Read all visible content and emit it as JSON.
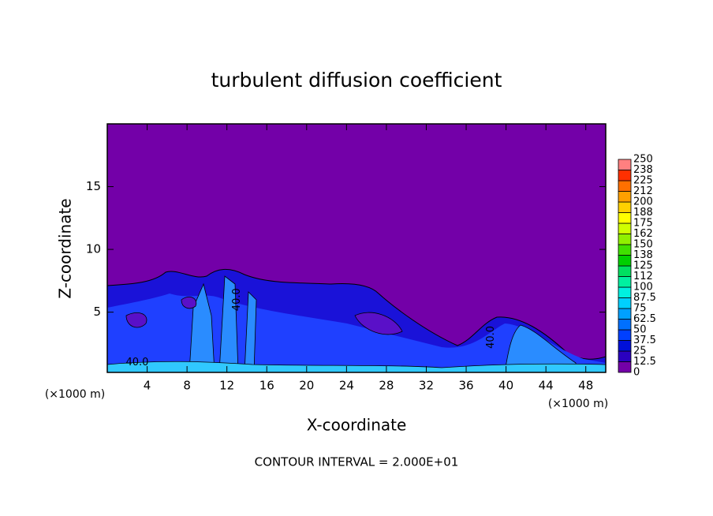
{
  "chart_data": {
    "type": "contour",
    "title": "turbulent diffusion coefficient",
    "xlabel": "X-coordinate",
    "ylabel": "Z-coordinate",
    "x_unit": "(×1000 m)",
    "y_unit": "(×1000 m)",
    "footer": "CONTOUR INTERVAL = 2.000E+01",
    "xlim": [
      0,
      50
    ],
    "ylim": [
      0.2,
      20
    ],
    "xticks": [
      4,
      8,
      12,
      16,
      20,
      24,
      28,
      32,
      36,
      40,
      44,
      48
    ],
    "yticks": [
      5,
      10,
      15
    ],
    "background_color": "#7300a8",
    "colorbar": {
      "levels": [
        0,
        12.5,
        25,
        37.5,
        50,
        62.5,
        75,
        87.5,
        100,
        112,
        125,
        138,
        150,
        162,
        175,
        188,
        200,
        212,
        225,
        238,
        250
      ],
      "colors": [
        "#7300a8",
        "#2a00c0",
        "#0010d8",
        "#0040ff",
        "#0070ff",
        "#00a0ff",
        "#00d0ff",
        "#00f0e0",
        "#00f0a0",
        "#00e060",
        "#00d000",
        "#40e000",
        "#90f000",
        "#d0ff00",
        "#ffff00",
        "#ffd000",
        "#ffa000",
        "#ff7000",
        "#ff3000",
        "#ff8080"
      ]
    },
    "contour_labels": [
      {
        "value": 40,
        "label": "40.0"
      },
      {
        "value": 40,
        "label": "40.0"
      },
      {
        "value": 40,
        "label": "40.0"
      }
    ]
  }
}
